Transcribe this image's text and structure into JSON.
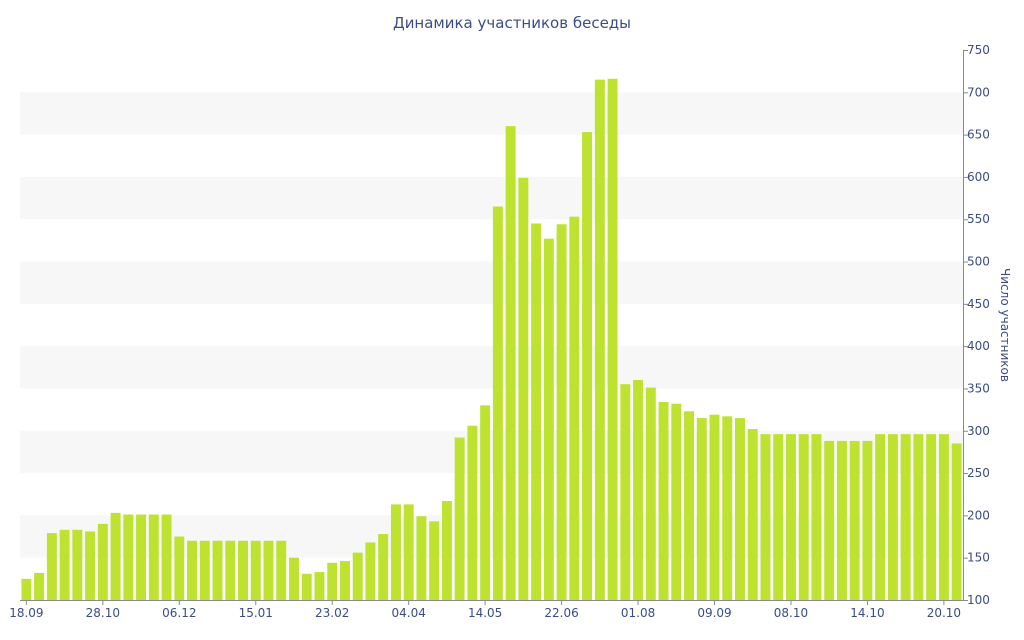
{
  "colors": {
    "bar": "#bde22f",
    "band": "#f7f7f7",
    "axis": "#8a8a8a",
    "text": "#3b4c86"
  },
  "chart_data": {
    "type": "bar",
    "title": "Динамика участников беседы",
    "xlabel": "",
    "ylabel": "Число участников",
    "y_axis_side": "right",
    "ylim": [
      100,
      750
    ],
    "y_ticks": [
      100,
      150,
      200,
      250,
      300,
      350,
      400,
      450,
      500,
      550,
      600,
      650,
      700,
      750
    ],
    "grid": "alternating horizontal bands",
    "legend": "none",
    "x_tick_labels": [
      {
        "index": 0,
        "label": "18.09"
      },
      {
        "index": 6,
        "label": "28.10"
      },
      {
        "index": 12,
        "label": "06.12"
      },
      {
        "index": 18,
        "label": "15.01"
      },
      {
        "index": 24,
        "label": "23.02"
      },
      {
        "index": 30,
        "label": "04.04"
      },
      {
        "index": 36,
        "label": "14.05"
      },
      {
        "index": 42,
        "label": "22.06"
      },
      {
        "index": 48,
        "label": "01.08"
      },
      {
        "index": 54,
        "label": "09.09"
      },
      {
        "index": 60,
        "label": "08.10"
      },
      {
        "index": 66,
        "label": "14.10"
      },
      {
        "index": 72,
        "label": "20.10"
      }
    ],
    "values": [
      125,
      132,
      179,
      183,
      183,
      181,
      190,
      203,
      201,
      201,
      201,
      201,
      175,
      170,
      170,
      170,
      170,
      170,
      170,
      170,
      170,
      150,
      131,
      133,
      144,
      146,
      156,
      168,
      178,
      213,
      213,
      199,
      193,
      217,
      292,
      306,
      330,
      565,
      660,
      599,
      545,
      527,
      544,
      553,
      653,
      715,
      716,
      355,
      360,
      351,
      334,
      332,
      323,
      315,
      319,
      317,
      315,
      302,
      296,
      296,
      296,
      296,
      296,
      288,
      288,
      288,
      288,
      296,
      296,
      296,
      296,
      296,
      296,
      285
    ]
  }
}
